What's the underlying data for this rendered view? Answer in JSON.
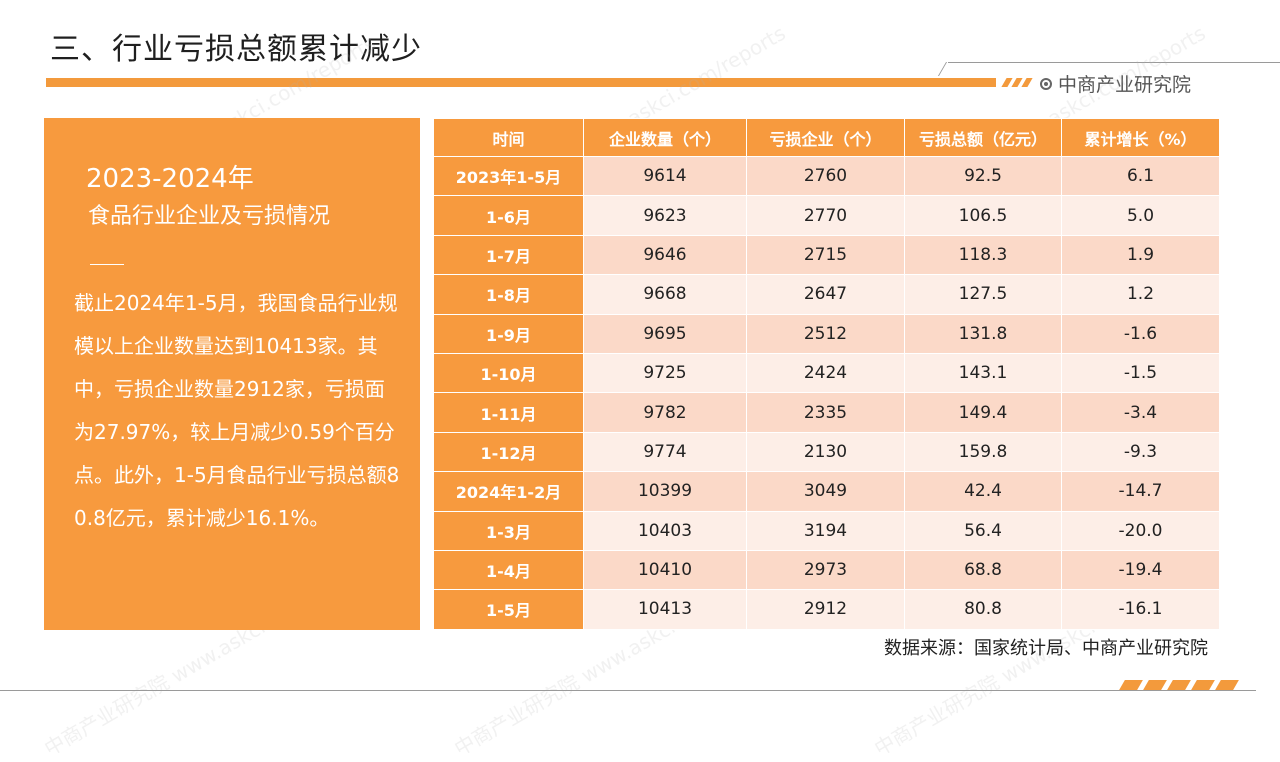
{
  "header": {
    "title": "三、行业亏损总额累计减少",
    "brand": "中商产业研究院"
  },
  "panel": {
    "heading1": "2023-2024年",
    "heading2": "食品行业企业及亏损情况",
    "body": "截止2024年1-5月，我国食品行业规模以上企业数量达到10413家。其中，亏损企业数量2912家，亏损面为27.97%，较上月减少0.59个百分点。此外，1-5月食品行业亏损总额80.8亿元，累计减少16.1%。"
  },
  "table": {
    "headers": [
      "时间",
      "企业数量（个）",
      "亏损企业（个）",
      "亏损总额（亿元）",
      "累计增长（%）"
    ],
    "rows": [
      [
        "2023年1-5月",
        "9614",
        "2760",
        "92.5",
        "6.1"
      ],
      [
        "1-6月",
        "9623",
        "2770",
        "106.5",
        "5.0"
      ],
      [
        "1-7月",
        "9646",
        "2715",
        "118.3",
        "1.9"
      ],
      [
        "1-8月",
        "9668",
        "2647",
        "127.5",
        "1.2"
      ],
      [
        "1-9月",
        "9695",
        "2512",
        "131.8",
        "-1.6"
      ],
      [
        "1-10月",
        "9725",
        "2424",
        "143.1",
        "-1.5"
      ],
      [
        "1-11月",
        "9782",
        "2335",
        "149.4",
        "-3.4"
      ],
      [
        "1-12月",
        "9774",
        "2130",
        "159.8",
        "-9.3"
      ],
      [
        "2024年1-2月",
        "10399",
        "3049",
        "42.4",
        "-14.7"
      ],
      [
        "1-3月",
        "10403",
        "3194",
        "56.4",
        "-20.0"
      ],
      [
        "1-4月",
        "10410",
        "2973",
        "68.8",
        "-19.4"
      ],
      [
        "1-5月",
        "10413",
        "2912",
        "80.8",
        "-16.1"
      ]
    ]
  },
  "footer": {
    "source": "数据来源：国家统计局、中商产业研究院"
  },
  "colors": {
    "accent": "#f79a3e",
    "row_odd": "#fbd9c8",
    "row_even": "#fdeee7"
  },
  "icons": {
    "brand": "target-circle-icon"
  }
}
